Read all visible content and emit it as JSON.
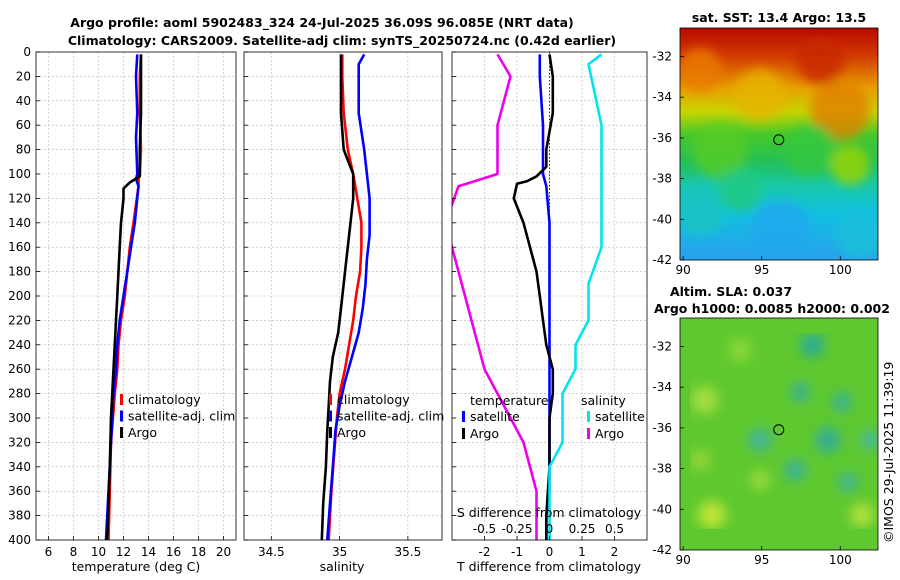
{
  "figure": {
    "title_line1": "Argo profile: aoml 5902483_324 24-Jul-2025 36.09S 96.085E (NRT data)",
    "title_line2": "Climatology: CARS2009. Satellite-adj clim: synTS_20250724.nc (0.42d earlier)",
    "credit": "©IMOS 29-Jul-2025 11:39:19"
  },
  "colors": {
    "climatology": "#ff0000",
    "satellite": "#0000ff",
    "argo": "#000000",
    "sal_satellite": "#00e5ee",
    "sal_argo": "#ee00ee"
  },
  "chart_data": [
    {
      "type": "line",
      "id": "temperature",
      "xlabel": "temperature (deg C)",
      "xlim": [
        5,
        21
      ],
      "xticks": [
        "6",
        "8",
        "10",
        "12",
        "14",
        "16",
        "18",
        "20"
      ],
      "xtick_values": [
        6,
        8,
        10,
        12,
        14,
        16,
        18,
        20
      ],
      "ylim": [
        0,
        400
      ],
      "yticks": [
        "0",
        "20",
        "40",
        "60",
        "80",
        "100",
        "120",
        "140",
        "160",
        "180",
        "200",
        "220",
        "240",
        "260",
        "280",
        "300",
        "320",
        "340",
        "360",
        "380",
        "400"
      ],
      "ytick_values": [
        0,
        20,
        40,
        60,
        80,
        100,
        120,
        140,
        160,
        180,
        200,
        220,
        240,
        260,
        280,
        300,
        320,
        340,
        360,
        380,
        400
      ],
      "legend": [
        "climatology",
        "satellite-adj. clim",
        "Argo"
      ],
      "series": [
        {
          "name": "climatology",
          "color": "#ff0000",
          "x": [
            13.4,
            13.3,
            13.3,
            13.4,
            13.3,
            13.2,
            13.2,
            12.8,
            12.5,
            12.3,
            12.1,
            11.8,
            11.6,
            11.5,
            11.3,
            11.0,
            10.9,
            10.8
          ],
          "y": [
            2,
            20,
            50,
            80,
            100,
            104,
            110,
            140,
            160,
            180,
            200,
            220,
            240,
            260,
            280,
            320,
            360,
            400
          ]
        },
        {
          "name": "satellite-adj. clim",
          "color": "#0000ff",
          "x": [
            13.1,
            13.0,
            13.1,
            13.0,
            13.1,
            13.0,
            13.2,
            12.9,
            12.6,
            12.3,
            12.0,
            11.7,
            11.5,
            11.4,
            11.2,
            11.0,
            10.8,
            10.6
          ],
          "y": [
            2,
            20,
            50,
            70,
            100,
            104,
            110,
            140,
            160,
            180,
            200,
            220,
            240,
            260,
            280,
            320,
            360,
            400
          ]
        },
        {
          "name": "Argo",
          "color": "#000000",
          "x": [
            13.4,
            13.4,
            13.4,
            13.3,
            13.3,
            12.5,
            12.0,
            12.0,
            11.8,
            11.7,
            11.6,
            11.5,
            11.4,
            11.3,
            11.2,
            11.0,
            10.9,
            10.8,
            10.7
          ],
          "y": [
            2,
            20,
            50,
            80,
            102,
            107,
            112,
            120,
            140,
            160,
            180,
            200,
            220,
            240,
            260,
            300,
            340,
            370,
            400
          ]
        }
      ]
    },
    {
      "type": "line",
      "id": "salinity",
      "xlabel": "salinity",
      "xlim": [
        34.3,
        35.75
      ],
      "xticks": [
        "34.5",
        "35",
        "35.5"
      ],
      "xtick_values": [
        34.5,
        35,
        35.5
      ],
      "ylim": [
        0,
        400
      ],
      "legend": [
        "climatology",
        "satellite-adj. clim",
        "Argo"
      ],
      "series": [
        {
          "name": "climatology",
          "color": "#ff0000",
          "x": [
            35.02,
            35.02,
            35.03,
            35.06,
            35.1,
            35.13,
            35.16,
            35.16,
            35.15,
            35.12,
            35.1,
            35.07,
            35.04,
            35.0,
            34.98,
            34.96,
            34.94,
            34.92
          ],
          "y": [
            2,
            20,
            50,
            80,
            100,
            120,
            140,
            160,
            180,
            200,
            220,
            240,
            260,
            280,
            300,
            330,
            360,
            400
          ]
        },
        {
          "name": "satellite-adj. clim",
          "color": "#0000ff",
          "x": [
            35.18,
            35.14,
            35.14,
            35.18,
            35.2,
            35.22,
            35.22,
            35.2,
            35.19,
            35.17,
            35.14,
            35.09,
            35.04,
            35.0,
            34.97,
            34.95,
            34.93,
            34.91
          ],
          "y": [
            2,
            10,
            50,
            80,
            100,
            120,
            150,
            170,
            190,
            210,
            230,
            250,
            270,
            290,
            310,
            340,
            370,
            400
          ]
        },
        {
          "name": "Argo",
          "color": "#000000",
          "x": [
            35.01,
            35.01,
            35.01,
            35.03,
            35.1,
            35.1,
            35.08,
            35.05,
            35.03,
            35.01,
            34.99,
            34.95,
            34.93,
            34.92,
            34.91,
            34.9,
            34.88,
            34.87
          ],
          "y": [
            2,
            20,
            50,
            80,
            100,
            120,
            140,
            170,
            190,
            210,
            230,
            250,
            270,
            290,
            310,
            340,
            370,
            400
          ]
        }
      ]
    },
    {
      "type": "line",
      "id": "difference",
      "xlabel": "T difference from climatology",
      "xlabel_top": "S difference from climatology",
      "xlim": [
        -3,
        3
      ],
      "xticks": [
        "-2",
        "-1",
        "0",
        "1",
        "2"
      ],
      "xtick_values": [
        -2,
        -1,
        0,
        1,
        2
      ],
      "xticks_top": [
        "-0.5",
        "-0.25",
        "0",
        "0.25",
        "0.5"
      ],
      "xtick_top_values": [
        -0.5,
        -0.25,
        0,
        0.25,
        0.5
      ],
      "ylim": [
        0,
        400
      ],
      "legend_temp_title": "temperature",
      "legend_sal_title": "salinity",
      "legend": [
        "satellite",
        "Argo",
        "satellite",
        "Argo"
      ],
      "series": [
        {
          "name": "T satellite",
          "color": "#0000ff",
          "x": [
            -0.3,
            -0.3,
            -0.2,
            -0.2,
            -0.1,
            0,
            0,
            0,
            0,
            0,
            0,
            0,
            0,
            0,
            -0.1,
            -0.1,
            -0.1
          ],
          "y": [
            2,
            20,
            60,
            100,
            110,
            140,
            180,
            220,
            260,
            280,
            300,
            320,
            340,
            360,
            380,
            390,
            400
          ]
        },
        {
          "name": "T Argo",
          "color": "#000000",
          "x": [
            0,
            0.1,
            0.1,
            -0.1,
            -0.1,
            -0.4,
            -0.7,
            -1.0,
            -1.1,
            -0.8,
            -0.6,
            -0.4,
            -0.3,
            -0.2,
            -0.1,
            0.1,
            0.1,
            0,
            0,
            -0.1,
            -0.1
          ],
          "y": [
            2,
            20,
            50,
            80,
            94,
            102,
            106,
            108,
            120,
            140,
            160,
            180,
            200,
            220,
            240,
            260,
            280,
            300,
            340,
            380,
            400
          ]
        },
        {
          "name": "S satellite",
          "color": "#00e5ee",
          "x": [
            0.4,
            0.3,
            0.4,
            0.4,
            0.4,
            0.4,
            0.3,
            0.3,
            0.2,
            0.2,
            0.1,
            0.1,
            0.1,
            0,
            0,
            0
          ],
          "y": [
            2,
            10,
            60,
            100,
            120,
            160,
            190,
            220,
            240,
            260,
            280,
            300,
            320,
            340,
            370,
            400
          ]
        },
        {
          "name": "S Argo",
          "color": "#ee00ee",
          "x": [
            -0.4,
            -0.3,
            -0.4,
            -0.4,
            -0.7,
            -0.8,
            -0.7,
            -0.6,
            -0.5,
            -0.4,
            -0.3,
            -0.2,
            -0.1,
            -0.1
          ],
          "y": [
            2,
            20,
            60,
            100,
            110,
            140,
            180,
            220,
            260,
            280,
            300,
            320,
            360,
            400
          ]
        }
      ]
    },
    {
      "type": "heatmap",
      "id": "sst_map",
      "title": "sat. SST: 13.4 Argo: 13.5",
      "xlim": [
        89.8,
        102.4
      ],
      "ylim": [
        -42,
        -30.6
      ],
      "xticks": [
        "90",
        "95",
        "100"
      ],
      "xtick_values": [
        90,
        95,
        100
      ],
      "yticks": [
        "-32",
        "-34",
        "-36",
        "-38",
        "-40",
        "-42"
      ],
      "ytick_values": [
        -32,
        -34,
        -36,
        -38,
        -40,
        -42
      ],
      "marker": {
        "lon": 96.085,
        "lat": -36.09
      }
    },
    {
      "type": "heatmap",
      "id": "sla_map",
      "title": "Altim. SLA: 0.037",
      "subtitle": "Argo h1000: 0.0085 h2000: 0.002",
      "xlim": [
        89.8,
        102.4
      ],
      "ylim": [
        -42,
        -30.6
      ],
      "xticks": [
        "90",
        "95",
        "100"
      ],
      "xtick_values": [
        90,
        95,
        100
      ],
      "yticks": [
        "-32",
        "-34",
        "-36",
        "-38",
        "-40",
        "-42"
      ],
      "ytick_values": [
        -32,
        -34,
        -36,
        -38,
        -40,
        -42
      ],
      "marker": {
        "lon": 96.085,
        "lat": -36.09
      }
    }
  ]
}
